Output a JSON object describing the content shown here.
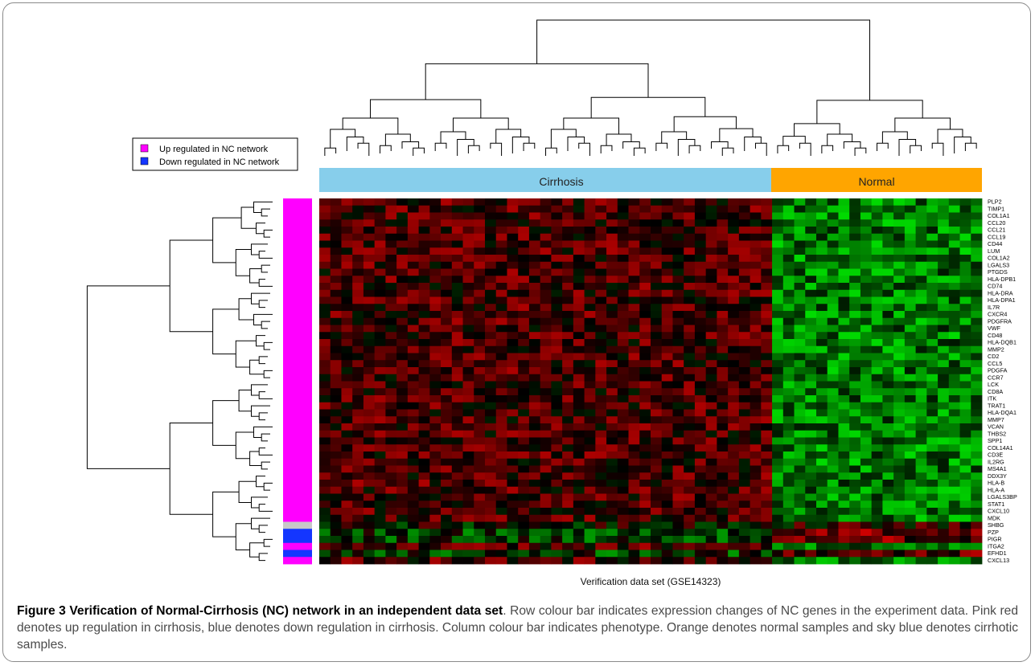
{
  "chart_data": {
    "type": "heatmap",
    "xlabel": "Verification data set (GSE14323)",
    "legend": {
      "placement": "top-left",
      "items": [
        {
          "label": "Up regulated in NC network",
          "color": "#ff00ff"
        },
        {
          "label": "Down regulated in NC network",
          "color": "#1436ff"
        }
      ]
    },
    "column_groups": [
      {
        "label": "Cirrhosis",
        "color": "#87ceeb",
        "count": 41
      },
      {
        "label": "Normal",
        "color": "#ffa500",
        "count": 19
      }
    ],
    "rows": [
      "PLP2",
      "TIMP1",
      "COL1A1",
      "CCL20",
      "CCL21",
      "CCL19",
      "CD44",
      "LUM",
      "COL1A2",
      "LGALS3",
      "PTGDS",
      "HLA-DPB1",
      "CD74",
      "HLA-DRA",
      "HLA-DPA1",
      "IL7R",
      "CXCR4",
      "PDGFRA",
      "VWF",
      "CD48",
      "HLA-DQB1",
      "MMP2",
      "CD2",
      "CCL5",
      "PDGFA",
      "CCR7",
      "LCK",
      "CD8A",
      "ITK",
      "TRAT1",
      "HLA-DQA1",
      "MMP7",
      "VCAN",
      "THBS2",
      "SPP1",
      "COL14A1",
      "CD3E",
      "IL2RG",
      "MS4A1",
      "DDX3Y",
      "HLA-B",
      "HLA-A",
      "LGALS3BP",
      "STAT1",
      "CXCL10",
      "MDK",
      "SHBG",
      "PZP",
      "PIGR",
      "ITGA2",
      "EFHD1",
      "CXCL13"
    ],
    "row_colors": [
      "up",
      "up",
      "up",
      "up",
      "up",
      "up",
      "up",
      "up",
      "up",
      "up",
      "up",
      "up",
      "up",
      "up",
      "up",
      "up",
      "up",
      "up",
      "up",
      "up",
      "up",
      "up",
      "up",
      "up",
      "up",
      "up",
      "up",
      "up",
      "up",
      "up",
      "up",
      "up",
      "up",
      "up",
      "up",
      "up",
      "up",
      "up",
      "up",
      "up",
      "up",
      "up",
      "up",
      "up",
      "up",
      "up",
      "none",
      "down",
      "down",
      "up",
      "down",
      "up"
    ],
    "color_scale": {
      "low": "#00ff00",
      "mid": "#000000",
      "high": "#ff0000"
    },
    "row_color_map": {
      "up": "#ff00ff",
      "down": "#1436ff",
      "none": "#c8c8c8"
    }
  },
  "caption": {
    "label": "Figure 3",
    "title": "Verification of Normal-Cirrhosis (NC) network in an independent data set",
    "body": ". Row colour bar indicates expression changes of NC genes in the experiment data. Pink red denotes up regulation in cirrhosis, blue denotes down regulation in cirrhosis. Column colour bar indicates phenotype. Orange denotes normal samples and sky blue denotes cirrhotic samples."
  }
}
